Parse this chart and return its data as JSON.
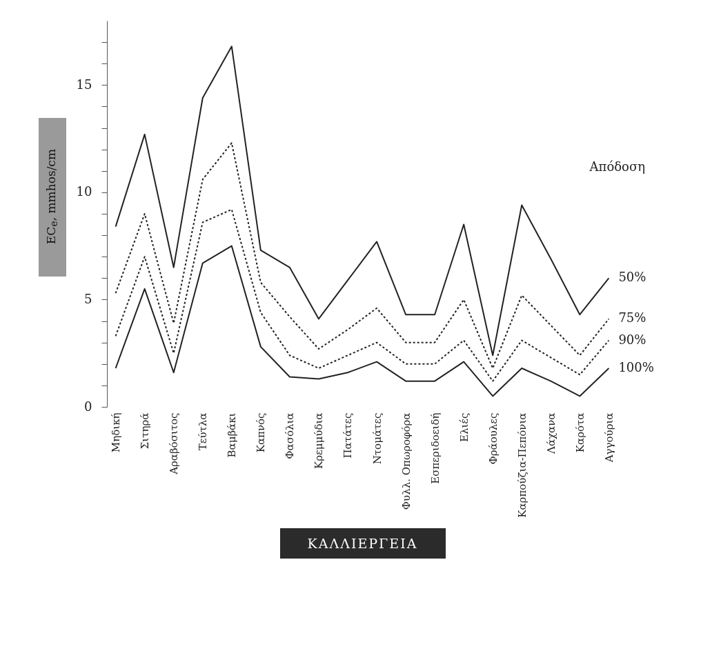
{
  "chart_data": {
    "type": "line",
    "categories": [
      "Μηδική",
      "Σιτηρά",
      "Αραβόσιτος",
      "Τεύτλα",
      "Βαμβάκι",
      "Καπνός",
      "Φασόλια",
      "Κρεμμύδια",
      "Πατάτες",
      "Ντομάτες",
      "Φυλλ. Οπωροφόρα",
      "Εσπεριδοειδή",
      "Ελιές",
      "Φράουλες",
      "Καρπούζια-Πεπόνια",
      "Λάχανα",
      "Καρότα",
      "Αγγούρια"
    ],
    "xlabel": "ΚΑΛΛΙΕΡΓΕΙΑ",
    "ylabel": "EC$_{e}$, mmhos/cm",
    "legend_title": "Απόδοση",
    "ylim": [
      0,
      18
    ],
    "yticks": [
      0,
      {
        "value": 1,
        "label": null
      },
      {
        "value": 2,
        "label": null
      },
      {
        "value": 3,
        "label": null
      },
      {
        "value": 4,
        "label": null
      },
      5,
      {
        "value": 6,
        "label": null
      },
      {
        "value": 7,
        "label": null
      },
      {
        "value": 8,
        "label": null
      },
      {
        "value": 9,
        "label": null
      },
      10,
      {
        "value": 11,
        "label": null
      },
      {
        "value": 12,
        "label": null
      },
      {
        "value": 13,
        "label": null
      },
      {
        "value": 14,
        "label": null
      },
      15,
      {
        "value": 16,
        "label": null
      },
      {
        "value": 17,
        "label": null
      }
    ],
    "grid": false,
    "series": [
      {
        "name": "50%",
        "color": "#222222",
        "line_style": "solid",
        "values": [
          8.4,
          12.7,
          6.5,
          14.4,
          16.8,
          7.3,
          6.5,
          4.1,
          5.9,
          7.7,
          4.3,
          4.3,
          8.5,
          2.4,
          9.4,
          6.9,
          4.3,
          6.0
        ]
      },
      {
        "name": "75%",
        "color": "#222222",
        "line_style": "dotted",
        "values": [
          5.3,
          9.0,
          3.9,
          10.6,
          12.3,
          5.8,
          4.2,
          2.7,
          3.6,
          4.6,
          3.0,
          3.0,
          5.0,
          1.8,
          5.2,
          3.8,
          2.4,
          4.1
        ]
      },
      {
        "name": "90%",
        "color": "#222222",
        "line_style": "dotted",
        "values": [
          3.3,
          7.0,
          2.5,
          8.6,
          9.2,
          4.4,
          2.4,
          1.8,
          2.4,
          3.0,
          2.0,
          2.0,
          3.1,
          1.2,
          3.1,
          2.3,
          1.5,
          3.1
        ]
      },
      {
        "name": "100%",
        "color": "#222222",
        "line_style": "solid",
        "values": [
          1.8,
          5.5,
          1.6,
          6.7,
          7.5,
          2.8,
          1.4,
          1.3,
          1.6,
          2.1,
          1.2,
          1.2,
          2.1,
          0.5,
          1.8,
          1.2,
          0.5,
          1.8
        ]
      }
    ]
  }
}
